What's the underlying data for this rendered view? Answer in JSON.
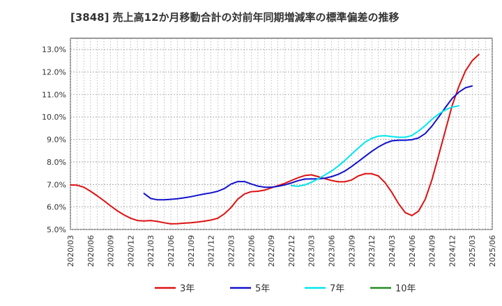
{
  "chart_data": {
    "type": "line",
    "title": "[3848]  売上高12か月移動合計の対前年同期増減率の標準偏差の推移",
    "xlabel": "",
    "ylabel": "",
    "ylim": [
      5.0,
      13.5
    ],
    "y_ticks": [
      "5.0%",
      "6.0%",
      "7.0%",
      "8.0%",
      "9.0%",
      "10.0%",
      "11.0%",
      "12.0%",
      "13.0%"
    ],
    "x_ticks": [
      "2020/03",
      "2020/06",
      "2020/09",
      "2020/12",
      "2021/03",
      "2021/06",
      "2021/09",
      "2021/12",
      "2022/03",
      "2022/06",
      "2022/09",
      "2022/12",
      "2023/03",
      "2023/06",
      "2023/09",
      "2023/12",
      "2024/03",
      "2024/06",
      "2024/09",
      "2024/12",
      "2025/03",
      "2025/06"
    ],
    "grid": true,
    "legend_position": "bottom",
    "series": [
      {
        "name": "3年",
        "color": "#dd1111",
        "values": [
          [
            "2020/03",
            6.98
          ],
          [
            "2020/04",
            6.97
          ],
          [
            "2020/05",
            6.88
          ],
          [
            "2020/06",
            6.7
          ],
          [
            "2020/07",
            6.5
          ],
          [
            "2020/08",
            6.28
          ],
          [
            "2020/09",
            6.05
          ],
          [
            "2020/10",
            5.83
          ],
          [
            "2020/11",
            5.65
          ],
          [
            "2020/12",
            5.5
          ],
          [
            "2021/01",
            5.4
          ],
          [
            "2021/02",
            5.38
          ],
          [
            "2021/03",
            5.4
          ],
          [
            "2021/04",
            5.36
          ],
          [
            "2021/05",
            5.3
          ],
          [
            "2021/06",
            5.25
          ],
          [
            "2021/07",
            5.26
          ],
          [
            "2021/08",
            5.28
          ],
          [
            "2021/09",
            5.3
          ],
          [
            "2021/10",
            5.33
          ],
          [
            "2021/11",
            5.37
          ],
          [
            "2021/12",
            5.42
          ],
          [
            "2022/01",
            5.5
          ],
          [
            "2022/02",
            5.7
          ],
          [
            "2022/03",
            5.98
          ],
          [
            "2022/04",
            6.35
          ],
          [
            "2022/05",
            6.58
          ],
          [
            "2022/06",
            6.68
          ],
          [
            "2022/07",
            6.7
          ],
          [
            "2022/08",
            6.75
          ],
          [
            "2022/09",
            6.85
          ],
          [
            "2022/10",
            6.95
          ],
          [
            "2022/11",
            7.05
          ],
          [
            "2022/12",
            7.18
          ],
          [
            "2023/01",
            7.3
          ],
          [
            "2023/02",
            7.4
          ],
          [
            "2023/03",
            7.43
          ],
          [
            "2023/04",
            7.35
          ],
          [
            "2023/05",
            7.26
          ],
          [
            "2023/06",
            7.18
          ],
          [
            "2023/07",
            7.12
          ],
          [
            "2023/08",
            7.12
          ],
          [
            "2023/09",
            7.2
          ],
          [
            "2023/10",
            7.38
          ],
          [
            "2023/11",
            7.48
          ],
          [
            "2023/12",
            7.48
          ],
          [
            "2024/01",
            7.38
          ],
          [
            "2024/02",
            7.08
          ],
          [
            "2024/03",
            6.65
          ],
          [
            "2024/04",
            6.15
          ],
          [
            "2024/05",
            5.75
          ],
          [
            "2024/06",
            5.62
          ],
          [
            "2024/07",
            5.82
          ],
          [
            "2024/08",
            6.35
          ],
          [
            "2024/09",
            7.22
          ],
          [
            "2024/10",
            8.3
          ],
          [
            "2024/11",
            9.4
          ],
          [
            "2024/12",
            10.5
          ],
          [
            "2025/01",
            11.35
          ],
          [
            "2025/02",
            12.05
          ],
          [
            "2025/03",
            12.5
          ],
          [
            "2025/04",
            12.78
          ]
        ]
      },
      {
        "name": "5年",
        "color": "#1111cc",
        "values": [
          [
            "2021/02",
            6.6
          ],
          [
            "2021/03",
            6.38
          ],
          [
            "2021/04",
            6.32
          ],
          [
            "2021/05",
            6.32
          ],
          [
            "2021/06",
            6.34
          ],
          [
            "2021/07",
            6.37
          ],
          [
            "2021/08",
            6.41
          ],
          [
            "2021/09",
            6.46
          ],
          [
            "2021/10",
            6.52
          ],
          [
            "2021/11",
            6.58
          ],
          [
            "2021/12",
            6.63
          ],
          [
            "2022/01",
            6.7
          ],
          [
            "2022/02",
            6.82
          ],
          [
            "2022/03",
            7.02
          ],
          [
            "2022/04",
            7.13
          ],
          [
            "2022/05",
            7.13
          ],
          [
            "2022/06",
            7.02
          ],
          [
            "2022/07",
            6.93
          ],
          [
            "2022/08",
            6.88
          ],
          [
            "2022/09",
            6.88
          ],
          [
            "2022/10",
            6.92
          ],
          [
            "2022/11",
            6.98
          ],
          [
            "2022/12",
            7.07
          ],
          [
            "2023/01",
            7.17
          ],
          [
            "2023/02",
            7.24
          ],
          [
            "2023/03",
            7.25
          ],
          [
            "2023/04",
            7.25
          ],
          [
            "2023/05",
            7.28
          ],
          [
            "2023/06",
            7.35
          ],
          [
            "2023/07",
            7.45
          ],
          [
            "2023/08",
            7.6
          ],
          [
            "2023/09",
            7.8
          ],
          [
            "2023/10",
            8.02
          ],
          [
            "2023/11",
            8.25
          ],
          [
            "2023/12",
            8.47
          ],
          [
            "2024/01",
            8.67
          ],
          [
            "2024/02",
            8.83
          ],
          [
            "2024/03",
            8.94
          ],
          [
            "2024/04",
            8.97
          ],
          [
            "2024/05",
            8.97
          ],
          [
            "2024/06",
            8.99
          ],
          [
            "2024/07",
            9.07
          ],
          [
            "2024/08",
            9.27
          ],
          [
            "2024/09",
            9.6
          ],
          [
            "2024/10",
            10.0
          ],
          [
            "2024/11",
            10.42
          ],
          [
            "2024/12",
            10.82
          ],
          [
            "2025/01",
            11.1
          ],
          [
            "2025/02",
            11.3
          ],
          [
            "2025/03",
            11.38
          ]
        ]
      },
      {
        "name": "7年",
        "color": "#00e5ee",
        "values": [
          [
            "2022/12",
            6.95
          ],
          [
            "2023/01",
            6.92
          ],
          [
            "2023/02",
            6.98
          ],
          [
            "2023/03",
            7.1
          ],
          [
            "2023/04",
            7.25
          ],
          [
            "2023/05",
            7.42
          ],
          [
            "2023/06",
            7.6
          ],
          [
            "2023/07",
            7.82
          ],
          [
            "2023/08",
            8.07
          ],
          [
            "2023/09",
            8.35
          ],
          [
            "2023/10",
            8.62
          ],
          [
            "2023/11",
            8.88
          ],
          [
            "2023/12",
            9.05
          ],
          [
            "2024/01",
            9.15
          ],
          [
            "2024/02",
            9.17
          ],
          [
            "2024/03",
            9.13
          ],
          [
            "2024/04",
            9.1
          ],
          [
            "2024/05",
            9.1
          ],
          [
            "2024/06",
            9.18
          ],
          [
            "2024/07",
            9.38
          ],
          [
            "2024/08",
            9.62
          ],
          [
            "2024/09",
            9.9
          ],
          [
            "2024/10",
            10.13
          ],
          [
            "2024/11",
            10.32
          ],
          [
            "2024/12",
            10.44
          ],
          [
            "2025/01",
            10.5
          ]
        ]
      },
      {
        "name": "10年",
        "color": "#228b22",
        "values": []
      }
    ]
  }
}
